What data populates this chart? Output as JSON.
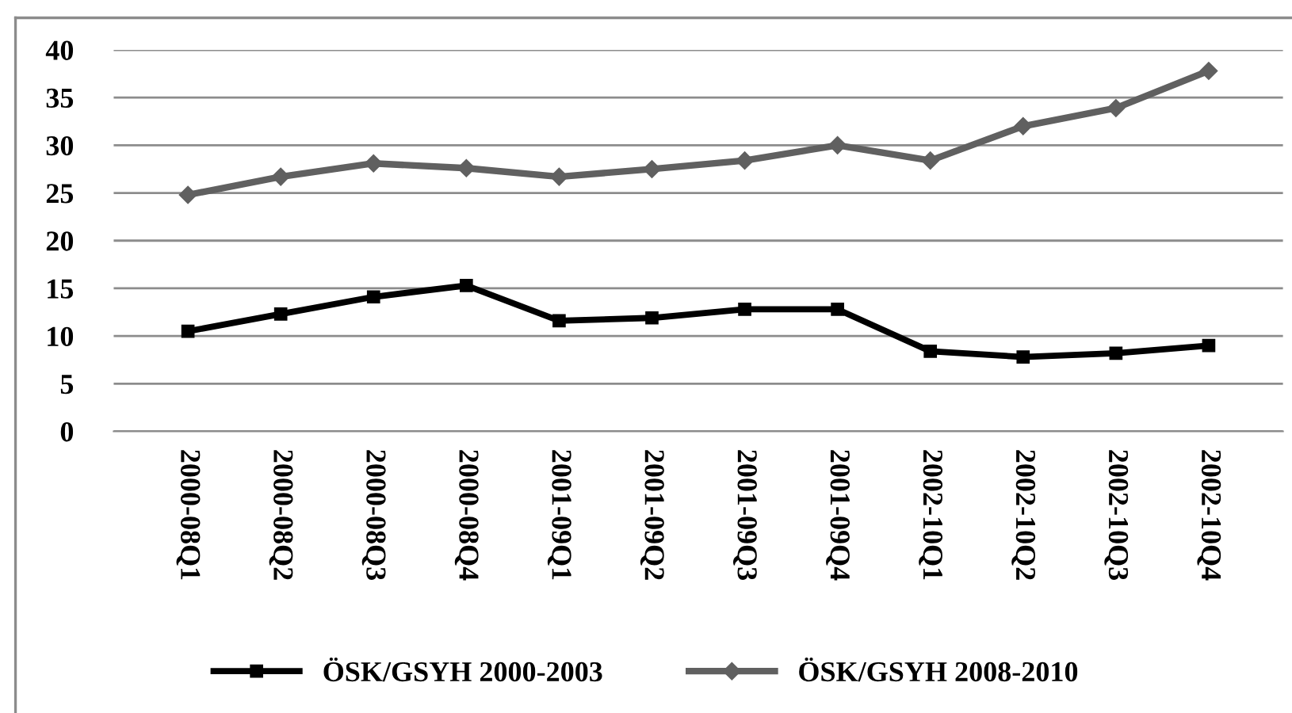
{
  "chart_data": {
    "type": "line",
    "categories": [
      "2000-08Q1",
      "2000-08Q2",
      "2000-08Q3",
      "2000-08Q4",
      "2001-09Q1",
      "2001-09Q2",
      "2001-09Q3",
      "2001-09Q4",
      "2002-10Q1",
      "2002-10Q2",
      "2002-10Q3",
      "2002-10Q4"
    ],
    "series": [
      {
        "name": "ÖSK/GSYH 2000-2003",
        "color": "#000000",
        "marker": "square",
        "values": [
          10.5,
          12.3,
          14.1,
          15.3,
          11.6,
          11.9,
          12.8,
          12.8,
          8.4,
          7.8,
          8.2,
          9.0
        ]
      },
      {
        "name": "ÖSK/GSYH 2008-2010",
        "color": "#606060",
        "marker": "diamond",
        "values": [
          24.8,
          26.7,
          28.1,
          27.6,
          26.7,
          27.5,
          28.4,
          30.0,
          28.4,
          32.0,
          33.9,
          37.8
        ]
      }
    ],
    "ylim": [
      0,
      40
    ],
    "yticks": [
      0,
      5,
      10,
      15,
      20,
      25,
      30,
      35,
      40
    ],
    "grid": "y",
    "legend": "bottom",
    "line_style": "solid"
  }
}
